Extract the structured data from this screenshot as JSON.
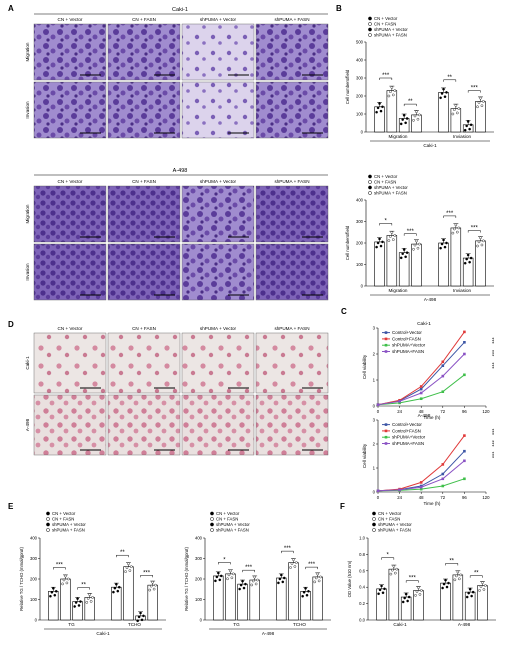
{
  "panel_letters": {
    "A": "A",
    "B": "B",
    "C": "C",
    "D": "D",
    "E": "E",
    "F": "F"
  },
  "panelA": {
    "cell_line_1": "Caki-1",
    "cell_line_2": "A-498",
    "columns": [
      "CN + Vector",
      "CN + FASN",
      "shPUMA + Vector",
      "shPUMA + FASN"
    ],
    "rows": [
      "Migration",
      "Invasion"
    ]
  },
  "panelD": {
    "columns": [
      "CN + Vector",
      "CN + FASN",
      "shPUMA + Vector",
      "shPUMA + FASN"
    ],
    "rows": [
      "Caki-1",
      "A-498"
    ]
  },
  "colors": {
    "micrograph_purple": "#6a4aa8",
    "micrograph_purple_light": "#b8a6d8",
    "he_pink": "#d48aa0",
    "he_bg": "#ece6e4",
    "control_vector": "#3c55a5",
    "control_fasn": "#e03a3a",
    "shpuma_vector": "#3fbf4a",
    "shpuma_fasn": "#8a52c4"
  },
  "chart_data": [
    {
      "id": "B1",
      "type": "bar",
      "cell_line": "Caki-1",
      "legend": [
        "CN + Vector",
        "CN + FASN",
        "shPUMA + Vector",
        "shPUMA + FASN"
      ],
      "ylabel": "Cell numbers/field",
      "xlabel": "Caki-1",
      "ylim": [
        0,
        500
      ],
      "yticks": [
        0,
        100,
        200,
        300,
        400,
        500
      ],
      "groups": [
        "Migration",
        "Inviasion"
      ],
      "series": [
        {
          "values": [
            140,
            220
          ]
        },
        {
          "values": [
            230,
            130
          ]
        },
        {
          "values": [
            75,
            40
          ]
        },
        {
          "values": [
            95,
            170
          ]
        }
      ],
      "sig": [
        [
          "***",
          "**"
        ],
        [
          "**",
          "***"
        ]
      ]
    },
    {
      "id": "B2",
      "type": "bar",
      "cell_line": "A-498",
      "legend": [
        "CN + Vector",
        "CN + FASN",
        "shPUMA + Vector",
        "shPUMA + FASN"
      ],
      "ylabel": "Cell numbers/field",
      "xlabel": "A-498",
      "ylim": [
        0,
        400
      ],
      "yticks": [
        0,
        100,
        200,
        300,
        400
      ],
      "groups": [
        "Migration",
        "Inviasion"
      ],
      "series": [
        {
          "values": [
            205,
            200
          ]
        },
        {
          "values": [
            235,
            270
          ]
        },
        {
          "values": [
            155,
            130
          ]
        },
        {
          "values": [
            195,
            210
          ]
        }
      ],
      "sig": [
        [
          "*",
          "***"
        ],
        [
          "***",
          "***"
        ]
      ]
    },
    {
      "id": "C1",
      "type": "line",
      "title": "Caki-1",
      "ylabel": "Cell viability",
      "xlabel": "Time (h)",
      "xlim": [
        0,
        120
      ],
      "ylim": [
        0,
        3
      ],
      "xticks": [
        0,
        24,
        48,
        72,
        96,
        120
      ],
      "yticks": [
        0,
        1,
        2,
        3
      ],
      "x": [
        0,
        24,
        48,
        72,
        96
      ],
      "series": [
        {
          "name": "Control+Vector",
          "values": [
            0.05,
            0.2,
            0.65,
            1.55,
            2.45
          ]
        },
        {
          "name": "Control+FASN",
          "values": [
            0.05,
            0.22,
            0.75,
            1.7,
            2.85
          ]
        },
        {
          "name": "shPUMA+Vector",
          "values": [
            0.05,
            0.12,
            0.28,
            0.55,
            1.2
          ]
        },
        {
          "name": "shPUMA+FASN",
          "values": [
            0.05,
            0.18,
            0.5,
            1.15,
            2.0
          ]
        }
      ],
      "sig": [
        "***",
        "***",
        "***"
      ]
    },
    {
      "id": "C2",
      "type": "line",
      "title": "A-498",
      "ylabel": "Cell viability",
      "xlabel": "Time (h)",
      "xlim": [
        0,
        120
      ],
      "ylim": [
        0,
        3
      ],
      "xticks": [
        0,
        24,
        48,
        72,
        96,
        120
      ],
      "yticks": [
        0,
        1,
        2,
        3
      ],
      "x": [
        0,
        24,
        48,
        72,
        96
      ],
      "series": [
        {
          "name": "Control+Vector",
          "values": [
            0.05,
            0.1,
            0.25,
            0.75,
            1.7
          ]
        },
        {
          "name": "Control+FASN",
          "values": [
            0.05,
            0.12,
            0.4,
            1.15,
            2.35
          ]
        },
        {
          "name": "shPUMA+Vector",
          "values": [
            0.05,
            0.07,
            0.12,
            0.25,
            0.55
          ]
        },
        {
          "name": "shPUMA+FASN",
          "values": [
            0.05,
            0.09,
            0.2,
            0.55,
            1.3
          ]
        }
      ],
      "sig": [
        "***",
        "***",
        "***"
      ]
    },
    {
      "id": "E1",
      "type": "bar",
      "cell_line": "Caki-1",
      "legend": [
        "CN + Vector",
        "CN + FASN",
        "shPUMA + Vector",
        "shPUMA + FASN"
      ],
      "ylabel": "Relative TG / TCHO (mmol/gprot)",
      "xlabel": "Caki-1",
      "ylim": [
        0,
        400
      ],
      "yticks": [
        0,
        100,
        200,
        300,
        400
      ],
      "groups": [
        "TG",
        "TCHO"
      ],
      "series": [
        {
          "values": [
            140,
            160
          ]
        },
        {
          "values": [
            200,
            260
          ]
        },
        {
          "values": [
            90,
            20
          ]
        },
        {
          "values": [
            110,
            170
          ]
        }
      ],
      "sig": [
        [
          "***",
          "**"
        ],
        [
          "**",
          "***"
        ]
      ]
    },
    {
      "id": "E2",
      "type": "bar",
      "cell_line": "A-498",
      "legend": [
        "CN + Vector",
        "CN + FASN",
        "shPUMA + Vector",
        "shPUMA + FASN"
      ],
      "ylabel": "Relative TG / TCHO (mmol/gprot)",
      "xlabel": "A-498",
      "ylim": [
        0,
        400
      ],
      "yticks": [
        0,
        100,
        200,
        300,
        400
      ],
      "groups": [
        "TG",
        "TCHO"
      ],
      "series": [
        {
          "values": [
            215,
            205
          ]
        },
        {
          "values": [
            225,
            280
          ]
        },
        {
          "values": [
            175,
            140
          ]
        },
        {
          "values": [
            195,
            210
          ]
        }
      ],
      "sig": [
        [
          "*",
          "***"
        ],
        [
          "***",
          "***"
        ]
      ]
    },
    {
      "id": "F",
      "type": "bar",
      "legend": [
        "CN + Vector",
        "CN + FASN",
        "shPUMA + Vector",
        "shPUMA + FASN"
      ],
      "ylabel": "OD Value (510 nm)",
      "ylim": [
        0,
        1.0
      ],
      "yticks": [
        0.0,
        0.2,
        0.4,
        0.6,
        0.8,
        1.0
      ],
      "groups": [
        "Caki-1",
        "A-498"
      ],
      "series": [
        {
          "values": [
            0.38,
            0.45
          ]
        },
        {
          "values": [
            0.62,
            0.55
          ]
        },
        {
          "values": [
            0.28,
            0.34
          ]
        },
        {
          "values": [
            0.36,
            0.42
          ]
        }
      ],
      "sig": [
        [
          "*",
          "***"
        ],
        [
          "**",
          "**"
        ]
      ]
    }
  ]
}
